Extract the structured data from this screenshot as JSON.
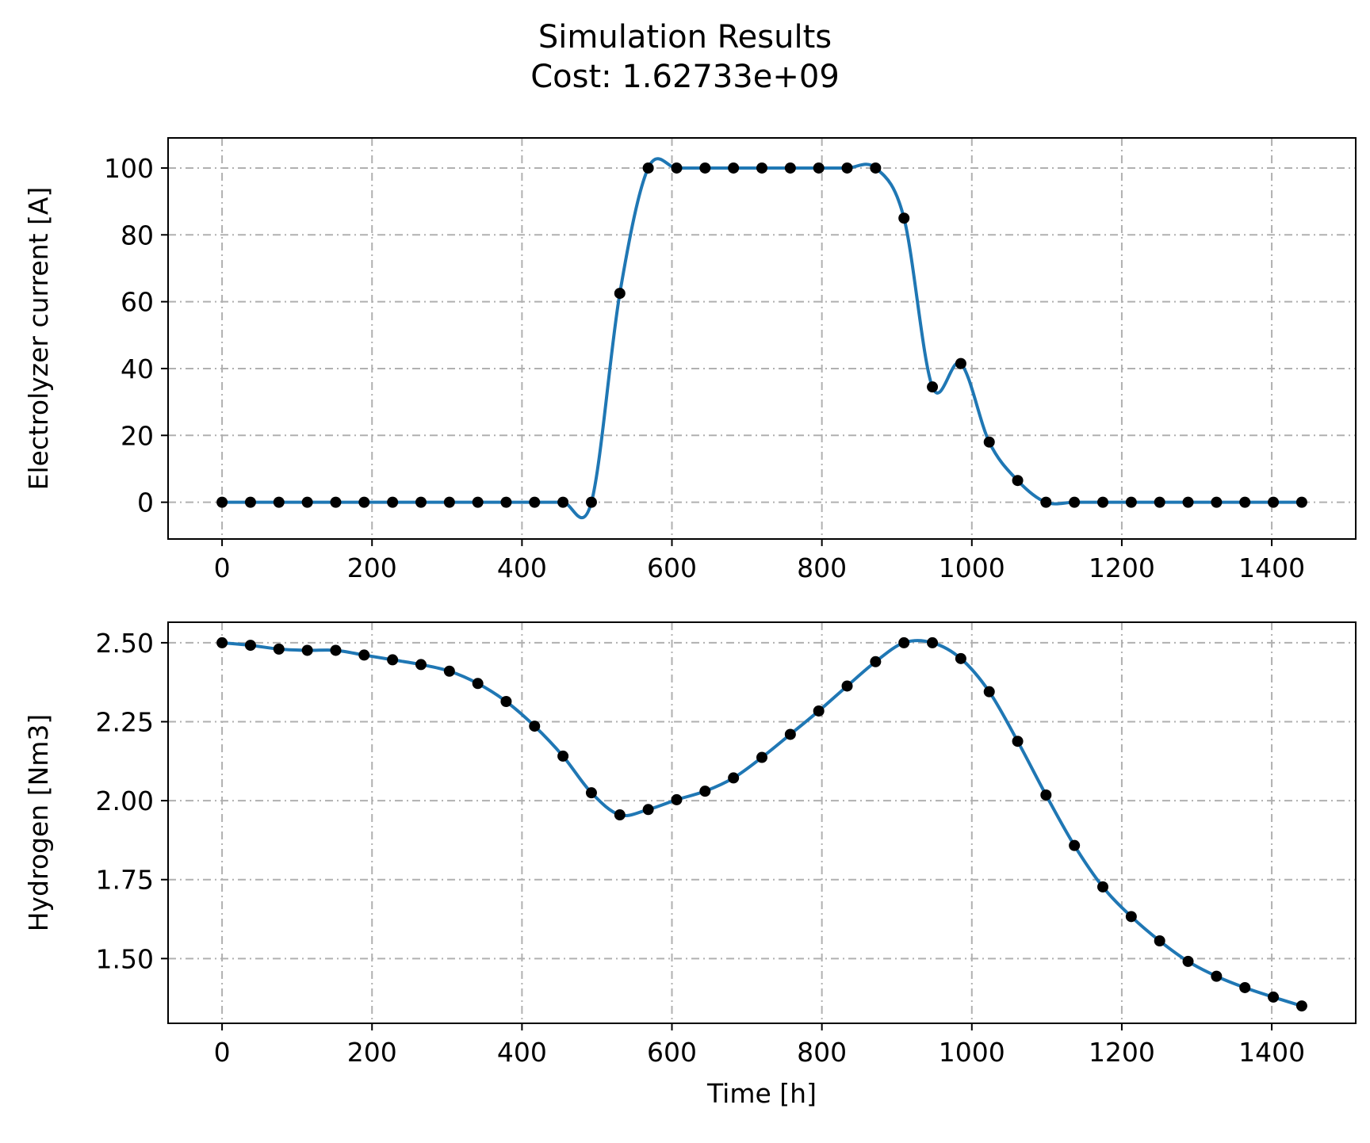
{
  "figure": {
    "title_line1": "Simulation Results",
    "title_line2": "Cost: 1.62733e+09"
  },
  "colors": {
    "line": "#1f77b4",
    "marker": "#000000",
    "grid": "#b0b0b0",
    "axes": "#000000"
  },
  "chart_data": [
    {
      "type": "line",
      "ylabel": "Electrolyzer current [A]",
      "xlabel": "",
      "xlim": [
        -72,
        1512
      ],
      "ylim": [
        -11,
        109
      ],
      "xticks": [
        0,
        200,
        400,
        600,
        800,
        1000,
        1200,
        1400
      ],
      "yticks": [
        0,
        20,
        40,
        60,
        80,
        100
      ],
      "ytick_labels": [
        "0",
        "20",
        "40",
        "60",
        "80",
        "100"
      ],
      "grid": true,
      "series": [
        {
          "x": [
            0,
            37.9,
            75.8,
            113.7,
            151.6,
            189.5,
            227.4,
            265.3,
            303.2,
            341.1,
            378.9,
            416.8,
            454.7,
            492.6,
            530.5,
            568.4,
            606.3,
            644.2,
            682.1,
            720,
            757.9,
            795.8,
            833.7,
            871.6,
            909.5,
            947.4,
            985.3,
            1023.2,
            1061.1,
            1098.9,
            1136.8,
            1174.7,
            1212.6,
            1250.5,
            1288.4,
            1326.3,
            1364.2,
            1402.1,
            1440
          ],
          "y": [
            0,
            0,
            0,
            0,
            0,
            0,
            0,
            0,
            0,
            0,
            0,
            0,
            0,
            0,
            62.5,
            100,
            100,
            100,
            100,
            100,
            100,
            100,
            100,
            100,
            85,
            34.5,
            41.5,
            18,
            6.5,
            0,
            0,
            0,
            0,
            0,
            0,
            0,
            0,
            0,
            0
          ]
        }
      ]
    },
    {
      "type": "line",
      "ylabel": "Hydrogen [Nm3]",
      "xlabel": "Time [h]",
      "xlim": [
        -72,
        1512
      ],
      "ylim": [
        1.295,
        2.565
      ],
      "xticks": [
        0,
        200,
        400,
        600,
        800,
        1000,
        1200,
        1400
      ],
      "yticks": [
        1.5,
        1.75,
        2.0,
        2.25,
        2.5
      ],
      "ytick_labels": [
        "1.50",
        "1.75",
        "2.00",
        "2.25",
        "2.50"
      ],
      "grid": true,
      "series": [
        {
          "x": [
            0,
            37.9,
            75.8,
            113.7,
            151.6,
            189.5,
            227.4,
            265.3,
            303.2,
            341.1,
            378.9,
            416.8,
            454.7,
            492.6,
            530.5,
            568.4,
            606.3,
            644.2,
            682.1,
            720,
            757.9,
            795.8,
            833.7,
            871.6,
            909.5,
            947.4,
            985.3,
            1023.2,
            1061.1,
            1098.9,
            1136.8,
            1174.7,
            1212.6,
            1250.5,
            1288.4,
            1326.3,
            1364.2,
            1402.1,
            1440
          ],
          "y": [
            2.5,
            2.492,
            2.48,
            2.476,
            2.476,
            2.461,
            2.446,
            2.431,
            2.41,
            2.371,
            2.314,
            2.236,
            2.141,
            2.025,
            1.955,
            1.972,
            2.003,
            2.03,
            2.072,
            2.137,
            2.21,
            2.284,
            2.363,
            2.44,
            2.5,
            2.5,
            2.45,
            2.345,
            2.188,
            2.018,
            1.858,
            1.727,
            1.633,
            1.556,
            1.491,
            1.444,
            1.408,
            1.378,
            1.35
          ]
        }
      ]
    }
  ]
}
